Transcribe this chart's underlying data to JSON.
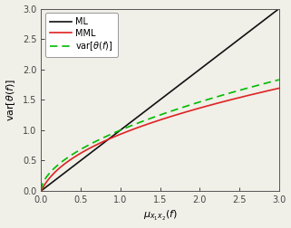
{
  "title": "",
  "xlabel": "$\\mu_{x_1 x_2}(f)$",
  "ylabel": "var$[\\theta(f)]$",
  "xlim": [
    0.0,
    3.0
  ],
  "ylim": [
    0.0,
    3.0
  ],
  "xticks": [
    0.0,
    0.5,
    1.0,
    1.5,
    2.0,
    2.5,
    3.0
  ],
  "yticks": [
    0.0,
    0.5,
    1.0,
    1.5,
    2.0,
    2.5,
    3.0
  ],
  "legend": [
    {
      "label": "var$[\\theta(f)]$",
      "color": "#00bb00",
      "linestyle": "--",
      "lw": 1.3
    },
    {
      "label": "MML",
      "color": "#dd2222",
      "linestyle": "-",
      "lw": 1.3
    },
    {
      "label": "ML",
      "color": "#111111",
      "linestyle": "-",
      "lw": 1.3
    }
  ],
  "background_color": "#f0efe8",
  "n_points": 1000,
  "true_alpha": 0.56,
  "mml_alpha": 0.5
}
